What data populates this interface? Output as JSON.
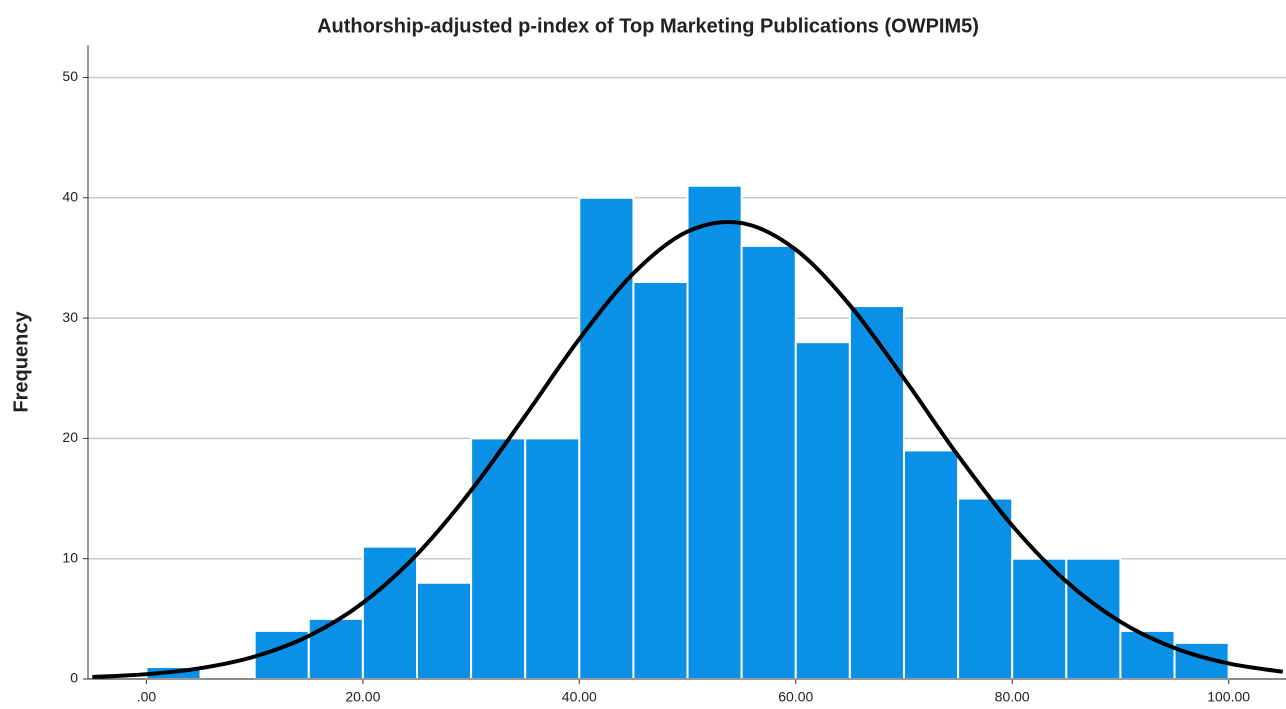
{
  "chart_data": {
    "type": "histogram",
    "title": "Authorship-adjusted  p-index of Top Marketing Publications  (OWPIM5)",
    "y_label": "Frequency",
    "bins": [
      0,
      5,
      10,
      15,
      20,
      25,
      30,
      35,
      40,
      45,
      50,
      55,
      60,
      65,
      70,
      75,
      80,
      85,
      90,
      95,
      100
    ],
    "values": [
      1,
      0,
      4,
      5,
      11,
      8,
      20,
      20,
      40,
      33,
      41,
      36,
      28,
      31,
      19,
      15,
      10,
      10,
      4,
      3
    ],
    "color": "#0a90e6",
    "xlim": [
      -5.4,
      105.3
    ],
    "ylim": [
      0,
      52.7
    ],
    "xticks": [
      {
        "value": 0,
        "label": ".00"
      },
      {
        "value": 20,
        "label": "20.00"
      },
      {
        "value": 40,
        "label": "40.00"
      },
      {
        "value": 60,
        "label": "60.00"
      },
      {
        "value": 80,
        "label": "80.00"
      },
      {
        "value": 100,
        "label": "100.00"
      }
    ],
    "yticks": [
      0,
      10,
      20,
      30,
      40,
      50
    ],
    "grid": true,
    "fit_curve": {
      "color": "#000000",
      "x": [
        -5,
        0,
        5,
        10,
        15,
        20,
        25,
        30,
        35,
        40,
        45,
        50,
        55,
        60,
        65,
        70,
        75,
        80,
        85,
        90,
        95,
        100,
        105
      ],
      "values": [
        0.17,
        0.4,
        0.9,
        1.87,
        3.58,
        6.33,
        10.36,
        15.67,
        21.88,
        28.26,
        33.72,
        37.19,
        37.9,
        35.69,
        31.07,
        24.99,
        18.57,
        12.76,
        8.1,
        4.75,
        2.58,
        1.29,
        0.6
      ]
    }
  }
}
